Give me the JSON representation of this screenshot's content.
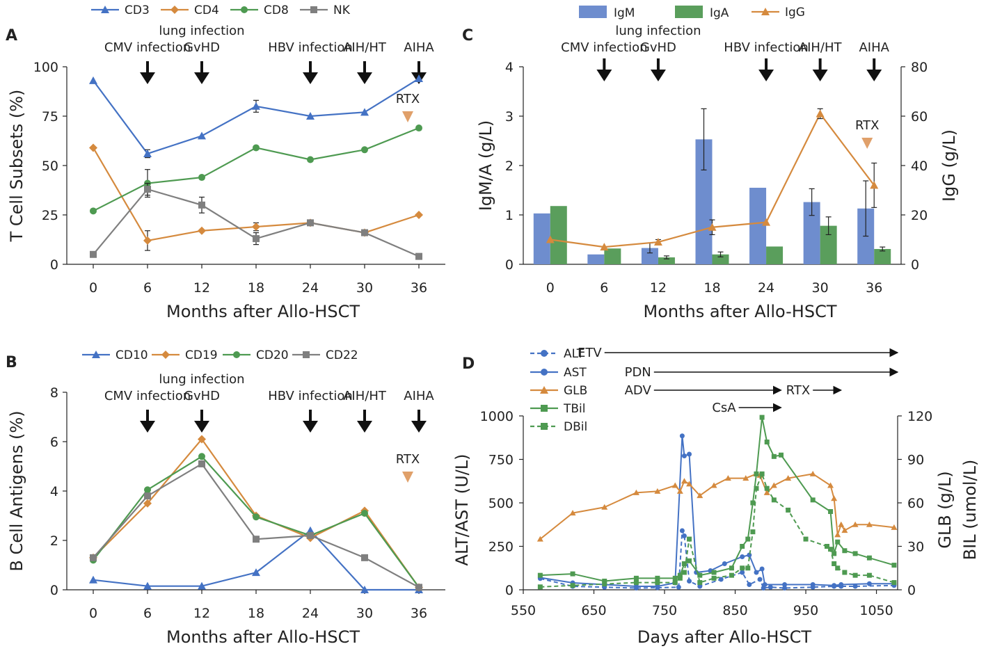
{
  "colors": {
    "blue": "#4472C4",
    "orange": "#D58A3E",
    "green": "#4E9A51",
    "gray": "#7F7F7F",
    "arrow_rtx": "#E0A06A",
    "bar_blue": "#6E8DCE",
    "bar_green": "#5A9E5C"
  },
  "chart_data": [
    {
      "panel": "A",
      "type": "line",
      "legend": [
        "CD3",
        "CD4",
        "CD8",
        "NK"
      ],
      "x": [
        0,
        6,
        12,
        18,
        24,
        30,
        36
      ],
      "xticks": [
        "0",
        "6",
        "12",
        "18",
        "24",
        "30",
        "36"
      ],
      "yticks": [
        "0",
        "25",
        "50",
        "75",
        "100"
      ],
      "ylim": [
        0,
        100
      ],
      "xlabel": "Months after Allo-HSCT",
      "ylabel": "T Cell Subsets (%)",
      "series": [
        {
          "name": "CD3",
          "color": "#4472C4",
          "marker": "triangle",
          "values": [
            93,
            56,
            65,
            80,
            75,
            77,
            94
          ],
          "errors": [
            0,
            2,
            0,
            3,
            0,
            0,
            0
          ]
        },
        {
          "name": "CD4",
          "color": "#D58A3E",
          "marker": "diamond",
          "values": [
            59,
            12,
            17,
            19,
            21,
            16,
            25
          ],
          "errors": [
            0,
            5,
            0,
            2,
            0,
            0,
            0
          ]
        },
        {
          "name": "CD8",
          "color": "#4E9A51",
          "marker": "circle",
          "values": [
            27,
            41,
            44,
            59,
            53,
            58,
            69
          ],
          "errors": [
            0,
            7,
            0,
            0,
            0,
            0,
            0
          ]
        },
        {
          "name": "NK",
          "color": "#7F7F7F",
          "marker": "square",
          "values": [
            5,
            38,
            30,
            13,
            21,
            16,
            4
          ],
          "errors": [
            0,
            3,
            4,
            3,
            0,
            0,
            0
          ]
        }
      ],
      "events": [
        {
          "label": "CMV infection",
          "x": 6
        },
        {
          "label": "lung infection",
          "label2": "GvHD",
          "x": 12
        },
        {
          "label": "HBV infection",
          "x": 24
        },
        {
          "label": "AIH/HT",
          "x": 30
        },
        {
          "label": "AIHA",
          "x": 36
        }
      ],
      "rtx": {
        "label": "RTX",
        "x": 36
      }
    },
    {
      "panel": "B",
      "type": "line",
      "legend": [
        "CD10",
        "CD19",
        "CD20",
        "CD22"
      ],
      "x": [
        0,
        6,
        12,
        18,
        24,
        30,
        36
      ],
      "xticks": [
        "0",
        "6",
        "12",
        "18",
        "24",
        "30",
        "36"
      ],
      "yticks": [
        "0",
        "2",
        "4",
        "6",
        "8"
      ],
      "ylim": [
        0,
        8
      ],
      "xlabel": "Months after Allo-HSCT",
      "ylabel": "B Cell Antigens (%)",
      "series": [
        {
          "name": "CD10",
          "color": "#4472C4",
          "marker": "triangle",
          "values": [
            0.4,
            0.15,
            0.15,
            0.7,
            2.4,
            0.0,
            0.0
          ]
        },
        {
          "name": "CD19",
          "color": "#D58A3E",
          "marker": "diamond",
          "values": [
            1.3,
            3.5,
            6.1,
            3.0,
            2.1,
            3.2,
            0.1
          ]
        },
        {
          "name": "CD20",
          "color": "#4E9A51",
          "marker": "circle",
          "values": [
            1.2,
            4.05,
            5.4,
            2.95,
            2.2,
            3.1,
            0.1
          ]
        },
        {
          "name": "CD22",
          "color": "#7F7F7F",
          "marker": "square",
          "values": [
            1.3,
            3.8,
            5.1,
            2.05,
            2.2,
            1.3,
            0.1
          ]
        }
      ],
      "events": [
        {
          "label": "CMV infection",
          "x": 6
        },
        {
          "label": "lung infection",
          "label2": "GvHD",
          "x": 12
        },
        {
          "label": "HBV infection",
          "x": 24
        },
        {
          "label": "AIH/HT",
          "x": 30
        },
        {
          "label": "AIHA",
          "x": 36
        }
      ],
      "rtx": {
        "label": "RTX",
        "x": 36
      }
    },
    {
      "panel": "C",
      "type": "bar+line",
      "legend": [
        "IgM",
        "IgA",
        "IgG"
      ],
      "categories": [
        "0",
        "6",
        "12",
        "18",
        "24",
        "30",
        "36"
      ],
      "yticks_left": [
        "0",
        "1",
        "2",
        "3",
        "4"
      ],
      "yticks_right": [
        "0",
        "20",
        "40",
        "60",
        "80"
      ],
      "ylim_left": [
        0,
        4
      ],
      "ylim_right": [
        0,
        80
      ],
      "xlabel": "Months after Allo-HSCT",
      "ylabel_left": "IgM/A (g/L)",
      "ylabel_right": "IgG (g/L)",
      "bars": [
        {
          "name": "IgM",
          "color": "#6E8DCE",
          "values": [
            1.03,
            0.2,
            0.33,
            2.53,
            1.55,
            1.26,
            1.13
          ],
          "errors": [
            0,
            0,
            0.1,
            0.62,
            0,
            0.27,
            0.56
          ]
        },
        {
          "name": "IgA",
          "color": "#5A9E5C",
          "values": [
            1.18,
            0.32,
            0.14,
            0.2,
            0.36,
            0.78,
            0.31
          ],
          "errors": [
            0,
            0,
            0.03,
            0.05,
            0,
            0.18,
            0.04
          ]
        }
      ],
      "line": {
        "name": "IgG",
        "color": "#D58A3E",
        "values": [
          10,
          7,
          9,
          15,
          17,
          61,
          32
        ],
        "errors": [
          0,
          0,
          1,
          3,
          0,
          2,
          9
        ]
      },
      "events": [
        {
          "label": "CMV infection",
          "x": 1
        },
        {
          "label": "lung infection",
          "label2": "GvHD",
          "x": 2
        },
        {
          "label": "HBV infection",
          "x": 4
        },
        {
          "label": "AIH/HT",
          "x": 5
        },
        {
          "label": "AIHA",
          "x": 6
        }
      ],
      "rtx": {
        "label": "RTX",
        "x": 6
      }
    },
    {
      "panel": "D",
      "type": "line",
      "legend": [
        "ALT",
        "AST",
        "GLB",
        "TBil",
        "DBil"
      ],
      "xticks": [
        "550",
        "650",
        "750",
        "850",
        "950",
        "1050"
      ],
      "xlim": [
        550,
        1080
      ],
      "yticks_left": [
        "0",
        "250",
        "500",
        "750",
        "1000"
      ],
      "yticks_right": [
        "0",
        "30",
        "60",
        "90",
        "120"
      ],
      "ylim_left": [
        0,
        1000
      ],
      "ylim_right": [
        0,
        120
      ],
      "xlabel": "Days after Allo-HSCT",
      "ylabel_left": "ALT/AST (U/L)",
      "ylabel_right_1": "GLB (g/L)",
      "ylabel_right_2": "BIL (umol/L)",
      "series": [
        {
          "name": "ALT",
          "color": "#4472C4",
          "marker": "circle",
          "dashed": true,
          "axis": "left",
          "x": [
            574,
            620,
            665,
            710,
            740,
            770,
            775,
            778,
            785,
            800,
            830,
            860,
            870,
            885,
            890,
            900,
            920,
            960,
            990,
            1000,
            1020,
            1075
          ],
          "y": [
            65,
            20,
            15,
            10,
            12,
            15,
            340,
            310,
            50,
            20,
            60,
            100,
            30,
            60,
            10,
            15,
            10,
            15,
            20,
            20,
            20,
            25
          ]
        },
        {
          "name": "AST",
          "color": "#4472C4",
          "marker": "circle",
          "dashed": false,
          "axis": "left",
          "x": [
            574,
            620,
            665,
            710,
            740,
            765,
            775,
            778,
            785,
            795,
            815,
            835,
            860,
            870,
            880,
            888,
            892,
            920,
            960,
            990,
            1000,
            1040,
            1075
          ],
          "y": [
            70,
            40,
            30,
            20,
            20,
            40,
            885,
            770,
            780,
            100,
            110,
            150,
            190,
            200,
            100,
            120,
            30,
            30,
            30,
            25,
            30,
            35,
            35
          ]
        },
        {
          "name": "GLB",
          "color": "#D58A3E",
          "marker": "triangle",
          "dashed": false,
          "axis": "right",
          "x": [
            574,
            620,
            665,
            710,
            740,
            765,
            772,
            778,
            785,
            800,
            820,
            840,
            865,
            880,
            885,
            895,
            905,
            925,
            960,
            985,
            990,
            995,
            1000,
            1005,
            1020,
            1040,
            1075
          ],
          "y": [
            35,
            53,
            57,
            67,
            68,
            72,
            68,
            75,
            73,
            65,
            72,
            77,
            77,
            80,
            79,
            67,
            72,
            77,
            80,
            72,
            63,
            38,
            45,
            41,
            45,
            45,
            43
          ]
        },
        {
          "name": "TBil",
          "color": "#4E9A51",
          "marker": "square",
          "dashed": false,
          "axis": "right",
          "x": [
            574,
            620,
            665,
            710,
            740,
            765,
            772,
            778,
            785,
            800,
            820,
            845,
            860,
            868,
            875,
            880,
            888,
            895,
            905,
            915,
            960,
            985,
            990,
            995,
            1005,
            1020,
            1040,
            1075
          ],
          "y": [
            10,
            11,
            6,
            8,
            8,
            8,
            10,
            18,
            20,
            10,
            12,
            15,
            30,
            35,
            60,
            80,
            119,
            102,
            92,
            93,
            62,
            54,
            25,
            33,
            27,
            25,
            22,
            17
          ]
        },
        {
          "name": "DBil",
          "color": "#4E9A51",
          "marker": "square",
          "dashed": true,
          "axis": "right",
          "x": [
            574,
            620,
            665,
            710,
            740,
            765,
            772,
            778,
            785,
            800,
            820,
            845,
            860,
            868,
            875,
            880,
            888,
            895,
            905,
            925,
            950,
            980,
            985,
            990,
            995,
            1005,
            1020,
            1040,
            1075
          ],
          "y": [
            2,
            3,
            4,
            5,
            5,
            5,
            8,
            12,
            35,
            5,
            8,
            10,
            15,
            15,
            40,
            70,
            80,
            70,
            62,
            55,
            35,
            30,
            28,
            18,
            15,
            12,
            10,
            10,
            5
          ]
        }
      ],
      "drugs": [
        {
          "label": "ETV",
          "start": 665,
          "end": 1080
        },
        {
          "label": "PDN",
          "start": 735,
          "end": 1080
        },
        {
          "label": "ADV",
          "start": 735,
          "end": 915
        },
        {
          "label": "RTX",
          "start": 960,
          "end": 1000
        },
        {
          "label": "CsA",
          "start": 855,
          "end": 915
        }
      ]
    }
  ]
}
